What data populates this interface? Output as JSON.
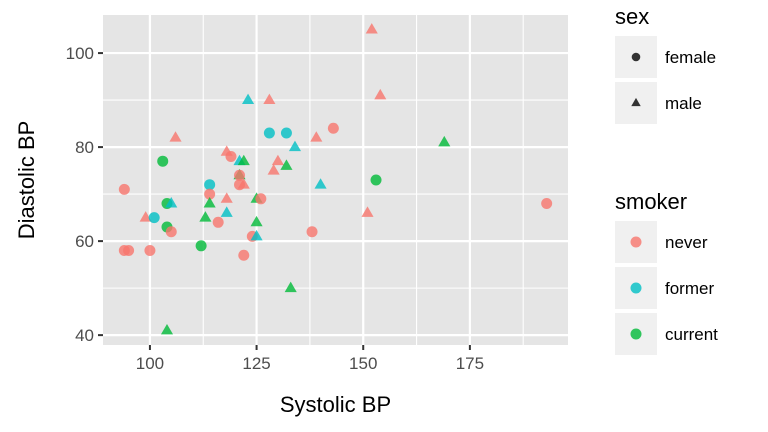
{
  "chart_data": {
    "type": "scatter",
    "title": "",
    "xlabel": "Systolic BP",
    "ylabel": "Diastolic BP",
    "xlim": [
      89,
      198
    ],
    "ylim": [
      37.9,
      108.1
    ],
    "x_ticks": [
      100,
      125,
      150,
      175
    ],
    "y_ticks": [
      40,
      60,
      80,
      100
    ],
    "grid": true,
    "legend_position": "right",
    "legends": [
      {
        "title": "sex",
        "aesthetic": "shape",
        "entries": [
          {
            "label": "female",
            "shape": "circle"
          },
          {
            "label": "male",
            "shape": "triangle"
          }
        ]
      },
      {
        "title": "smoker",
        "aesthetic": "color",
        "entries": [
          {
            "label": "never",
            "color": "#F8766D"
          },
          {
            "label": "former",
            "color": "#00BFC4"
          },
          {
            "label": "current",
            "color": "#00BA38"
          }
        ]
      }
    ],
    "points": [
      {
        "x": 152,
        "y": 105,
        "sex": "male",
        "smoker": "never"
      },
      {
        "x": 154,
        "y": 91,
        "sex": "male",
        "smoker": "never"
      },
      {
        "x": 123,
        "y": 90,
        "sex": "male",
        "smoker": "former"
      },
      {
        "x": 128,
        "y": 90,
        "sex": "male",
        "smoker": "never"
      },
      {
        "x": 128,
        "y": 83,
        "sex": "female",
        "smoker": "former"
      },
      {
        "x": 132,
        "y": 83,
        "sex": "female",
        "smoker": "former"
      },
      {
        "x": 143,
        "y": 84,
        "sex": "female",
        "smoker": "never"
      },
      {
        "x": 139,
        "y": 82,
        "sex": "male",
        "smoker": "never"
      },
      {
        "x": 106,
        "y": 82,
        "sex": "male",
        "smoker": "never"
      },
      {
        "x": 169,
        "y": 81,
        "sex": "male",
        "smoker": "current"
      },
      {
        "x": 134,
        "y": 80,
        "sex": "male",
        "smoker": "former"
      },
      {
        "x": 118,
        "y": 79,
        "sex": "male",
        "smoker": "never"
      },
      {
        "x": 119,
        "y": 78,
        "sex": "female",
        "smoker": "never"
      },
      {
        "x": 103,
        "y": 77,
        "sex": "female",
        "smoker": "current"
      },
      {
        "x": 121,
        "y": 77,
        "sex": "male",
        "smoker": "former"
      },
      {
        "x": 122,
        "y": 77,
        "sex": "male",
        "smoker": "current"
      },
      {
        "x": 130,
        "y": 77,
        "sex": "male",
        "smoker": "never"
      },
      {
        "x": 132,
        "y": 76,
        "sex": "male",
        "smoker": "current"
      },
      {
        "x": 129,
        "y": 75,
        "sex": "male",
        "smoker": "never"
      },
      {
        "x": 121,
        "y": 74,
        "sex": "male",
        "smoker": "current"
      },
      {
        "x": 121,
        "y": 74,
        "sex": "female",
        "smoker": "never"
      },
      {
        "x": 94,
        "y": 71,
        "sex": "female",
        "smoker": "never"
      },
      {
        "x": 114,
        "y": 72,
        "sex": "female",
        "smoker": "former"
      },
      {
        "x": 121,
        "y": 72,
        "sex": "female",
        "smoker": "never"
      },
      {
        "x": 122,
        "y": 72,
        "sex": "male",
        "smoker": "never"
      },
      {
        "x": 140,
        "y": 72,
        "sex": "male",
        "smoker": "former"
      },
      {
        "x": 153,
        "y": 73,
        "sex": "female",
        "smoker": "current"
      },
      {
        "x": 114,
        "y": 70,
        "sex": "female",
        "smoker": "never"
      },
      {
        "x": 118,
        "y": 69,
        "sex": "male",
        "smoker": "never"
      },
      {
        "x": 125,
        "y": 69,
        "sex": "male",
        "smoker": "current"
      },
      {
        "x": 126,
        "y": 69,
        "sex": "female",
        "smoker": "never"
      },
      {
        "x": 114,
        "y": 68,
        "sex": "male",
        "smoker": "current"
      },
      {
        "x": 104,
        "y": 68,
        "sex": "female",
        "smoker": "current"
      },
      {
        "x": 105,
        "y": 68,
        "sex": "male",
        "smoker": "former"
      },
      {
        "x": 193,
        "y": 68,
        "sex": "female",
        "smoker": "never"
      },
      {
        "x": 118,
        "y": 66,
        "sex": "male",
        "smoker": "former"
      },
      {
        "x": 151,
        "y": 66,
        "sex": "male",
        "smoker": "never"
      },
      {
        "x": 99,
        "y": 65,
        "sex": "male",
        "smoker": "never"
      },
      {
        "x": 101,
        "y": 65,
        "sex": "female",
        "smoker": "former"
      },
      {
        "x": 113,
        "y": 65,
        "sex": "male",
        "smoker": "current"
      },
      {
        "x": 125,
        "y": 64,
        "sex": "male",
        "smoker": "current"
      },
      {
        "x": 116,
        "y": 64,
        "sex": "female",
        "smoker": "never"
      },
      {
        "x": 104,
        "y": 63,
        "sex": "female",
        "smoker": "current"
      },
      {
        "x": 105,
        "y": 62,
        "sex": "female",
        "smoker": "never"
      },
      {
        "x": 138,
        "y": 62,
        "sex": "female",
        "smoker": "never"
      },
      {
        "x": 124,
        "y": 61,
        "sex": "female",
        "smoker": "never"
      },
      {
        "x": 125,
        "y": 61,
        "sex": "male",
        "smoker": "former"
      },
      {
        "x": 112,
        "y": 59,
        "sex": "female",
        "smoker": "current"
      },
      {
        "x": 94,
        "y": 58,
        "sex": "female",
        "smoker": "never"
      },
      {
        "x": 95,
        "y": 58,
        "sex": "female",
        "smoker": "never"
      },
      {
        "x": 100,
        "y": 58,
        "sex": "female",
        "smoker": "never"
      },
      {
        "x": 122,
        "y": 57,
        "sex": "female",
        "smoker": "never"
      },
      {
        "x": 133,
        "y": 50,
        "sex": "male",
        "smoker": "current"
      },
      {
        "x": 104,
        "y": 41,
        "sex": "male",
        "smoker": "current"
      }
    ]
  },
  "colors": {
    "panel_bg": "#E5E5E5",
    "grid": "#FFFFFF",
    "legend_key_bg": "#F0F0F0",
    "tick_text": "#4D4D4D",
    "tick_mark": "#333333",
    "shape_key": "#333333",
    "never": "#F8766D",
    "former": "#00BFC4",
    "current": "#00BA38"
  }
}
